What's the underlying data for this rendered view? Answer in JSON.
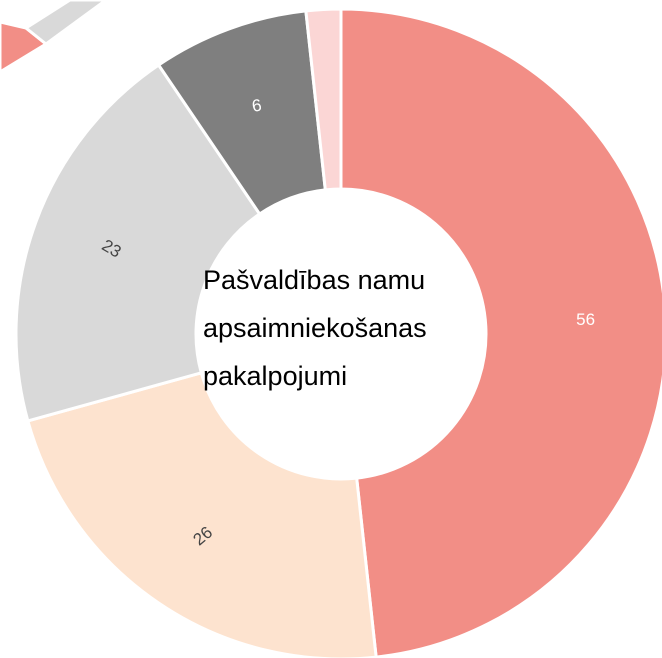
{
  "chart_data": {
    "type": "donut",
    "center_label": [
      "Pašvaldības namu",
      "apsaimniekošanas",
      "pakalpojumi"
    ],
    "values": [
      56,
      26,
      23,
      9,
      2
    ],
    "colors": [
      "#f28e86",
      "#fde3cf",
      "#d9d9d9",
      "#7f7f7f",
      "#fbd6d5"
    ]
  }
}
